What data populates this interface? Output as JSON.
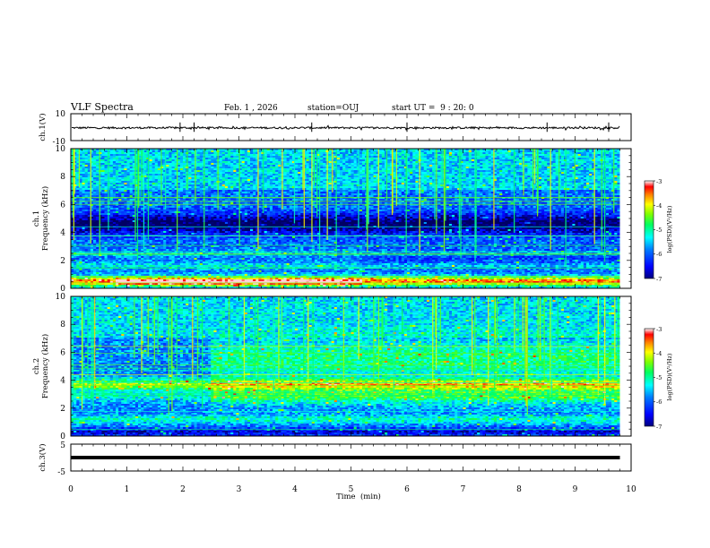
{
  "header": {
    "title": "VLF Spectra",
    "date": "Feb. 1 , 2026",
    "station": "station=OUJ",
    "start": "start UT =  9 : 20: 0"
  },
  "colors": {
    "palette": [
      "#000000",
      "#00007f",
      "#0000ff",
      "#0080ff",
      "#00ffff",
      "#00ff80",
      "#80ff00",
      "#ffff00",
      "#ff8000",
      "#ff0000",
      "#ffc8c8"
    ]
  },
  "chart_data": [
    {
      "type": "line",
      "id": "ch1-waveform",
      "ylabel": "ch.1(V)",
      "ylim": [
        -10,
        10
      ],
      "ytick_labels": [
        "10",
        "-10"
      ],
      "xlim": [
        0,
        10
      ],
      "baseline": -0.5,
      "noise_amplitude": 0.7
    },
    {
      "type": "heatmap",
      "id": "ch1-spectrogram",
      "ylabel": "ch.1",
      "ylabel2": "Frequency  (kHz)",
      "ylim": [
        0,
        10
      ],
      "ytick_labels": [
        "0",
        "2",
        "4",
        "6",
        "8",
        "10"
      ],
      "xlim": [
        0,
        9.8
      ],
      "colorbar": {
        "label": "log(PSD)(V²/Hz)",
        "range": [
          -7,
          -3
        ],
        "tick_labels": [
          "-3",
          "-4",
          "-5",
          "-6",
          "-7"
        ]
      }
    },
    {
      "type": "heatmap",
      "id": "ch2-spectrogram",
      "ylabel": "ch.2",
      "ylabel2": "Frequency  (kHz)",
      "ylim": [
        0,
        10
      ],
      "ytick_labels": [
        "0",
        "2",
        "4",
        "6",
        "8",
        "10"
      ],
      "xlim": [
        0,
        9.8
      ],
      "colorbar": {
        "label": "log(PSD)(V²/Hz)",
        "range": [
          -7,
          -3
        ],
        "tick_labels": [
          "-3",
          "-4",
          "-5",
          "-6",
          "-7"
        ]
      }
    },
    {
      "type": "line",
      "id": "ch3-waveform",
      "ylabel": "ch.3(V)",
      "ylim": [
        -5,
        5
      ],
      "ytick_labels": [
        "5",
        "-5"
      ],
      "xlim": [
        0,
        9.8
      ],
      "constant_value": 0
    }
  ],
  "xaxis": {
    "label": "Time  (min)",
    "range": [
      0,
      10
    ],
    "tick_labels": [
      "0",
      "1",
      "2",
      "3",
      "4",
      "5",
      "6",
      "7",
      "8",
      "9",
      "10"
    ]
  }
}
